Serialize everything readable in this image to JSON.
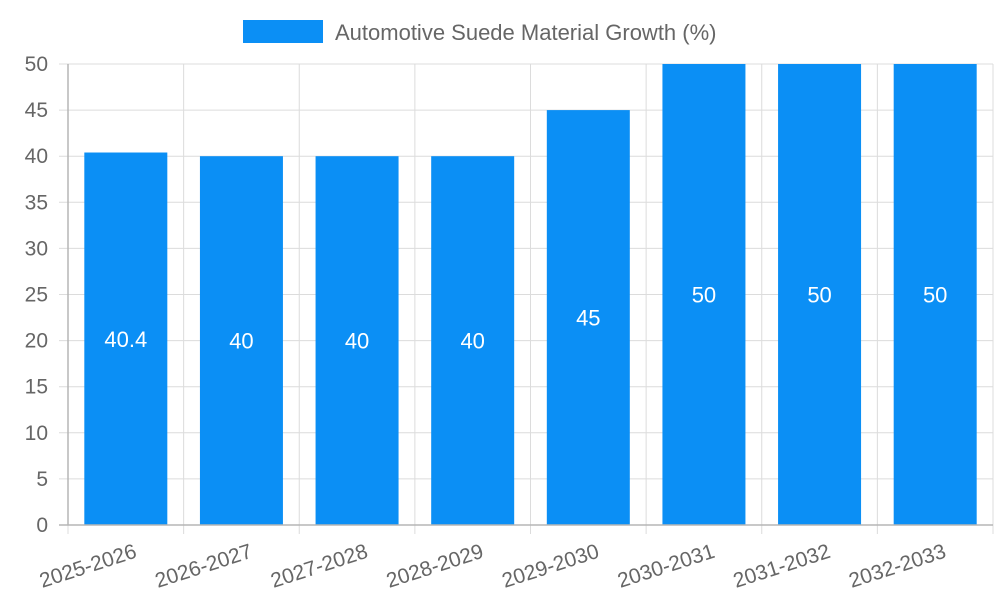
{
  "chart_data": {
    "type": "bar",
    "title": "",
    "xlabel": "",
    "ylabel": "",
    "legend": {
      "position": "top",
      "label": "Automotive Suede Material Growth (%)"
    },
    "categories": [
      "2025-2026",
      "2026-2027",
      "2027-2028",
      "2028-2029",
      "2029-2030",
      "2030-2031",
      "2031-2032",
      "2032-2033"
    ],
    "series": [
      {
        "name": "Automotive Suede Material Growth (%)",
        "values": [
          40.4,
          40,
          40,
          40,
          45,
          50,
          50,
          50
        ],
        "data_labels": [
          "40.4",
          "40",
          "40",
          "40",
          "45",
          "50",
          "50",
          "50"
        ]
      }
    ],
    "ylim": [
      0,
      50
    ],
    "y_ticks": [
      "0",
      "5",
      "10",
      "15",
      "20",
      "25",
      "30",
      "35",
      "40",
      "45",
      "50"
    ],
    "grid": true,
    "colors": {
      "bar": "#0b8ff5",
      "grid": "#dcdcdc",
      "axis": "#b5b5b5",
      "tick_text": "#666666",
      "bar_label": "#ffffff",
      "legend_text": "#666666"
    }
  }
}
